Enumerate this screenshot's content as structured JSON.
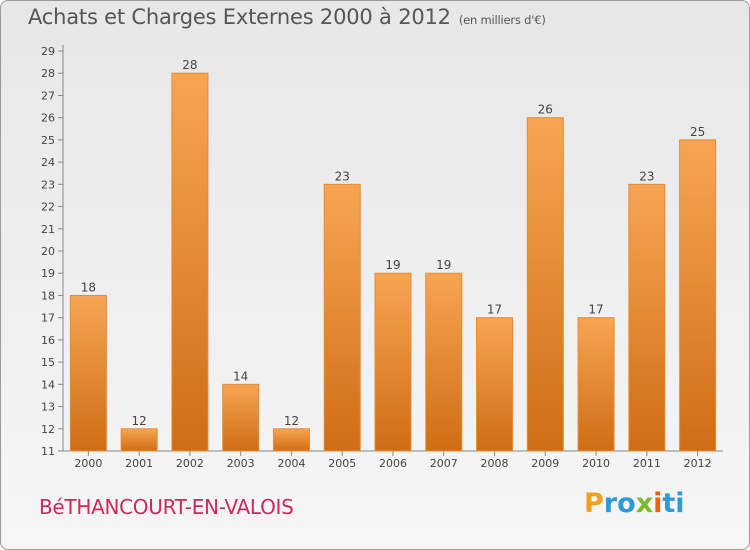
{
  "header": {
    "title": "Achats et Charges Externes 2000 à 2012",
    "subtitle": "(en milliers d'€)"
  },
  "footer": {
    "city": "BéTHANCOURT-EN-VALOIS",
    "brand_letters": [
      "P",
      "r",
      "o",
      "x",
      "i",
      "t",
      "i"
    ]
  },
  "colors": {
    "bar_top": "#f7a553",
    "bar_bottom": "#cf6d15",
    "title": "#555555",
    "city": "#cc2a5a",
    "brand": [
      "#f0a020",
      "#2f9ad8",
      "#2f9ad8",
      "#7dbb2a",
      "#e8621b",
      "#2f9ad8",
      "#2f9ad8"
    ]
  },
  "chart_data": {
    "type": "bar",
    "title": "Achats et Charges Externes 2000 à 2012",
    "subtitle": "(en milliers d'€)",
    "categories": [
      "2000",
      "2001",
      "2002",
      "2003",
      "2004",
      "2005",
      "2006",
      "2007",
      "2008",
      "2009",
      "2010",
      "2011",
      "2012"
    ],
    "values": [
      18,
      12,
      28,
      14,
      12,
      23,
      19,
      19,
      17,
      26,
      17,
      23,
      25
    ],
    "ylim": [
      11,
      29
    ],
    "yticks": [
      11,
      12,
      13,
      14,
      15,
      16,
      17,
      18,
      19,
      20,
      21,
      22,
      23,
      24,
      25,
      26,
      27,
      28,
      29
    ],
    "xlabel": "",
    "ylabel": "",
    "grid": false,
    "data_labels": true
  }
}
